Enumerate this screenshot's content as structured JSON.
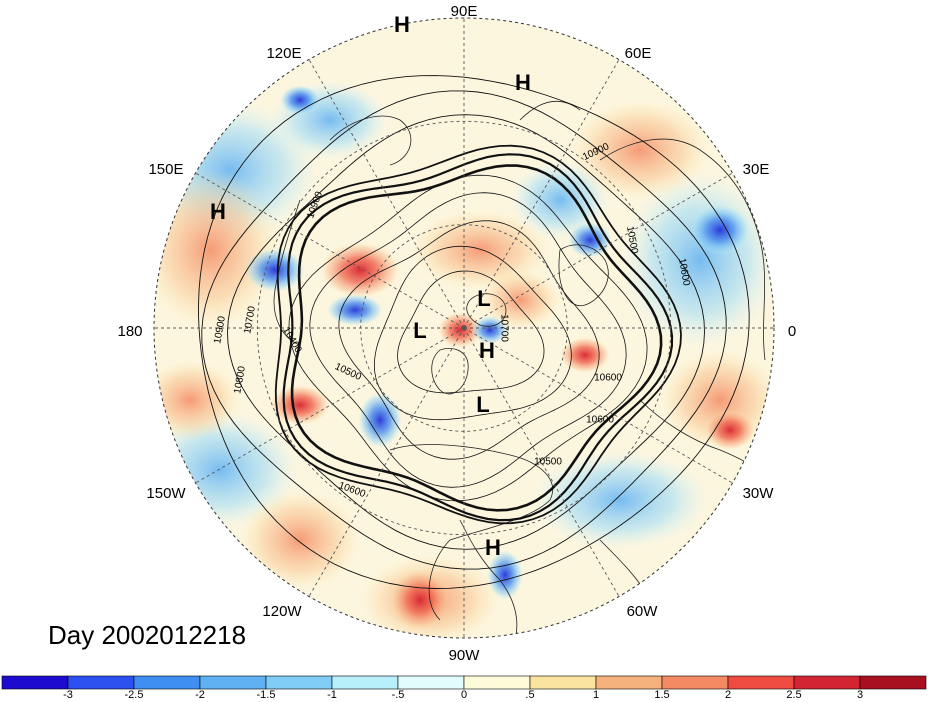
{
  "title": "Day 2002012218",
  "longitude_labels": [
    {
      "id": "90E",
      "text": "90E"
    },
    {
      "id": "60E",
      "text": "60E"
    },
    {
      "id": "30E",
      "text": "30E"
    },
    {
      "id": "0",
      "text": "0"
    },
    {
      "id": "30W",
      "text": "30W"
    },
    {
      "id": "60W",
      "text": "60W"
    },
    {
      "id": "90W",
      "text": "90W"
    },
    {
      "id": "120W",
      "text": "120W"
    },
    {
      "id": "150W",
      "text": "150W"
    },
    {
      "id": "180",
      "text": "180"
    },
    {
      "id": "150E",
      "text": "150E"
    },
    {
      "id": "120E",
      "text": "120E"
    }
  ],
  "contour_labels": [
    "10900",
    "10500",
    "10600",
    "10600",
    "10500",
    "10700",
    "10600",
    "10500",
    "10400",
    "10700",
    "10900",
    "10800",
    "10900",
    "10600"
  ],
  "pressure_centers": [
    "H",
    "H",
    "H",
    "L",
    "L",
    "H",
    "L",
    "H"
  ],
  "colorbar": {
    "colors": [
      "#1e0bd0",
      "#2c4ff0",
      "#3f8ef2",
      "#5fb1f4",
      "#7fccf6",
      "#b7f0fb",
      "#e2fbfd",
      "#fefbd8",
      "#fbe3a0",
      "#f6b27c",
      "#f48a63",
      "#ef4b41",
      "#d22431",
      "#a80f1f"
    ],
    "tick_labels": [
      "-3",
      "-2.5",
      "-2",
      "-1.5",
      "-1",
      "-.5",
      "0",
      ".5",
      "1",
      "1.5",
      "2",
      "2.5",
      "3"
    ]
  }
}
